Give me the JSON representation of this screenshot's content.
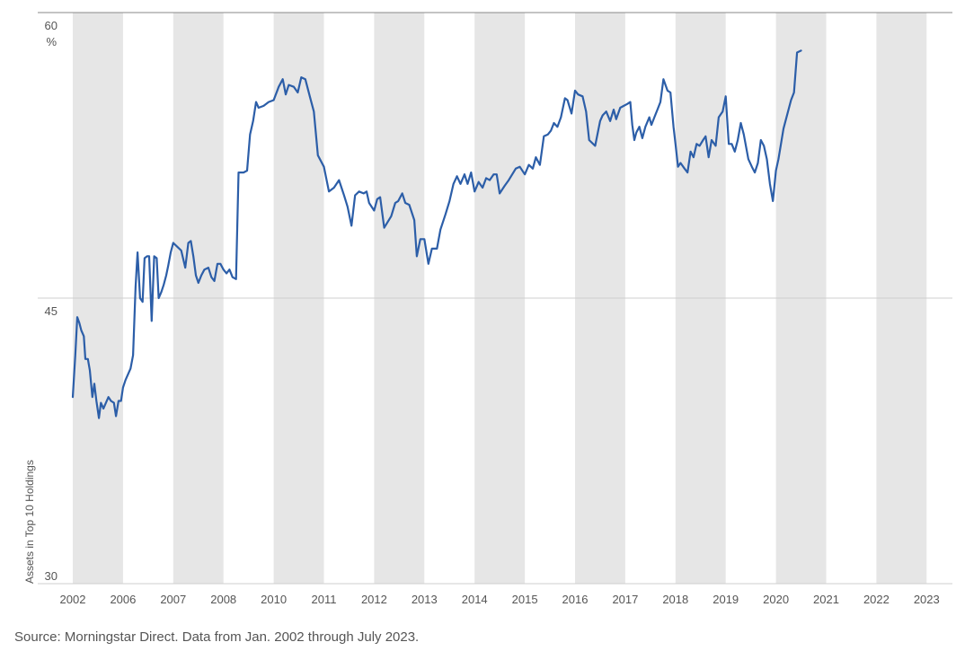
{
  "chart_data": {
    "type": "line",
    "title": "",
    "xlabel": "",
    "ylabel": "Assets in Top 10 Holdings",
    "y_unit": "%",
    "ylim": [
      30,
      60
    ],
    "yticks": [
      30,
      45,
      60
    ],
    "x_tick_labels": [
      "2002",
      "2006",
      "2007",
      "2008",
      "2010",
      "2011",
      "2012",
      "2013",
      "2014",
      "2015",
      "2016",
      "2017",
      "2018",
      "2019",
      "2020",
      "2021",
      "2022",
      "2023"
    ],
    "shaded_bands": [
      [
        0,
        1
      ],
      [
        2,
        3
      ],
      [
        4,
        5
      ],
      [
        6,
        7
      ],
      [
        8,
        9
      ],
      [
        10,
        11
      ],
      [
        12,
        13
      ],
      [
        14,
        15
      ],
      [
        16,
        17
      ]
    ],
    "grid": "horizontal",
    "series": [
      {
        "name": "Assets in Top 10 Holdings",
        "color": "#2c5ea8",
        "points": [
          [
            0.0,
            39.8
          ],
          [
            0.05,
            42.0
          ],
          [
            0.09,
            44.0
          ],
          [
            0.13,
            43.7
          ],
          [
            0.17,
            43.3
          ],
          [
            0.22,
            43.0
          ],
          [
            0.25,
            41.8
          ],
          [
            0.3,
            41.8
          ],
          [
            0.34,
            41.2
          ],
          [
            0.39,
            39.8
          ],
          [
            0.43,
            40.5
          ],
          [
            0.47,
            39.6
          ],
          [
            0.52,
            38.7
          ],
          [
            0.56,
            39.5
          ],
          [
            0.61,
            39.2
          ],
          [
            0.66,
            39.5
          ],
          [
            0.71,
            39.8
          ],
          [
            0.76,
            39.6
          ],
          [
            0.82,
            39.5
          ],
          [
            0.86,
            38.8
          ],
          [
            0.91,
            39.6
          ],
          [
            0.96,
            39.6
          ],
          [
            1.0,
            40.3
          ],
          [
            1.05,
            40.7
          ],
          [
            1.1,
            41.0
          ],
          [
            1.15,
            41.3
          ],
          [
            1.2,
            42.0
          ],
          [
            1.25,
            45.6
          ],
          [
            1.29,
            47.4
          ],
          [
            1.34,
            45.0
          ],
          [
            1.39,
            44.8
          ],
          [
            1.43,
            47.1
          ],
          [
            1.48,
            47.2
          ],
          [
            1.52,
            47.2
          ],
          [
            1.57,
            43.8
          ],
          [
            1.62,
            47.2
          ],
          [
            1.67,
            47.1
          ],
          [
            1.71,
            45.0
          ],
          [
            1.76,
            45.3
          ],
          [
            1.81,
            45.7
          ],
          [
            1.86,
            46.2
          ],
          [
            1.9,
            46.7
          ],
          [
            1.95,
            47.4
          ],
          [
            2.0,
            47.9
          ],
          [
            2.08,
            47.7
          ],
          [
            2.16,
            47.5
          ],
          [
            2.24,
            46.6
          ],
          [
            2.3,
            47.9
          ],
          [
            2.35,
            48.0
          ],
          [
            2.4,
            47.2
          ],
          [
            2.45,
            46.2
          ],
          [
            2.5,
            45.8
          ],
          [
            2.56,
            46.2
          ],
          [
            2.62,
            46.5
          ],
          [
            2.7,
            46.6
          ],
          [
            2.76,
            46.1
          ],
          [
            2.82,
            45.9
          ],
          [
            2.88,
            46.8
          ],
          [
            2.94,
            46.8
          ],
          [
            3.0,
            46.5
          ],
          [
            3.06,
            46.3
          ],
          [
            3.12,
            46.5
          ],
          [
            3.18,
            46.1
          ],
          [
            3.25,
            46.0
          ],
          [
            3.3,
            51.6
          ],
          [
            3.4,
            51.6
          ],
          [
            3.47,
            51.7
          ],
          [
            3.53,
            53.6
          ],
          [
            3.59,
            54.3
          ],
          [
            3.65,
            55.3
          ],
          [
            3.7,
            55.0
          ],
          [
            3.8,
            55.1
          ],
          [
            3.9,
            55.3
          ],
          [
            4.0,
            55.4
          ],
          [
            4.1,
            56.1
          ],
          [
            4.18,
            56.5
          ],
          [
            4.24,
            55.7
          ],
          [
            4.3,
            56.2
          ],
          [
            4.4,
            56.1
          ],
          [
            4.48,
            55.8
          ],
          [
            4.55,
            56.6
          ],
          [
            4.63,
            56.5
          ],
          [
            4.72,
            55.6
          ],
          [
            4.8,
            54.8
          ],
          [
            4.88,
            52.5
          ],
          [
            5.0,
            51.9
          ],
          [
            5.1,
            50.6
          ],
          [
            5.2,
            50.8
          ],
          [
            5.3,
            51.2
          ],
          [
            5.4,
            50.4
          ],
          [
            5.47,
            49.8
          ],
          [
            5.55,
            48.8
          ],
          [
            5.62,
            50.4
          ],
          [
            5.7,
            50.6
          ],
          [
            5.79,
            50.5
          ],
          [
            5.85,
            50.6
          ],
          [
            5.9,
            50.0
          ],
          [
            6.0,
            49.6
          ],
          [
            6.06,
            50.2
          ],
          [
            6.12,
            50.3
          ],
          [
            6.2,
            48.7
          ],
          [
            6.27,
            49.0
          ],
          [
            6.34,
            49.3
          ],
          [
            6.42,
            50.0
          ],
          [
            6.48,
            50.1
          ],
          [
            6.56,
            50.5
          ],
          [
            6.62,
            50.0
          ],
          [
            6.7,
            49.9
          ],
          [
            6.8,
            49.1
          ],
          [
            6.85,
            47.2
          ],
          [
            6.92,
            48.1
          ],
          [
            7.0,
            48.1
          ],
          [
            7.08,
            46.8
          ],
          [
            7.15,
            47.6
          ],
          [
            7.25,
            47.6
          ],
          [
            7.32,
            48.6
          ],
          [
            7.42,
            49.4
          ],
          [
            7.5,
            50.1
          ],
          [
            7.58,
            51.0
          ],
          [
            7.65,
            51.4
          ],
          [
            7.72,
            51.0
          ],
          [
            7.8,
            51.5
          ],
          [
            7.86,
            51.0
          ],
          [
            7.93,
            51.6
          ],
          [
            8.0,
            50.6
          ],
          [
            8.08,
            51.1
          ],
          [
            8.16,
            50.8
          ],
          [
            8.23,
            51.3
          ],
          [
            8.3,
            51.2
          ],
          [
            8.38,
            51.5
          ],
          [
            8.44,
            51.5
          ],
          [
            8.5,
            50.5
          ],
          [
            8.6,
            50.9
          ],
          [
            8.68,
            51.2
          ],
          [
            8.75,
            51.5
          ],
          [
            8.82,
            51.8
          ],
          [
            8.9,
            51.9
          ],
          [
            9.0,
            51.5
          ],
          [
            9.08,
            52.0
          ],
          [
            9.16,
            51.8
          ],
          [
            9.22,
            52.4
          ],
          [
            9.3,
            52.0
          ],
          [
            9.38,
            53.5
          ],
          [
            9.46,
            53.6
          ],
          [
            9.52,
            53.8
          ],
          [
            9.58,
            54.2
          ],
          [
            9.65,
            54.0
          ],
          [
            9.72,
            54.5
          ],
          [
            9.8,
            55.5
          ],
          [
            9.85,
            55.4
          ],
          [
            9.93,
            54.7
          ],
          [
            10.0,
            55.9
          ],
          [
            10.06,
            55.7
          ],
          [
            10.15,
            55.6
          ],
          [
            10.22,
            54.8
          ],
          [
            10.28,
            53.3
          ],
          [
            10.4,
            53.0
          ],
          [
            10.5,
            54.3
          ],
          [
            10.55,
            54.6
          ],
          [
            10.62,
            54.8
          ],
          [
            10.7,
            54.3
          ],
          [
            10.77,
            54.9
          ],
          [
            10.82,
            54.4
          ],
          [
            10.9,
            55.0
          ],
          [
            10.97,
            55.1
          ],
          [
            11.04,
            55.2
          ],
          [
            11.1,
            55.3
          ],
          [
            11.14,
            54.1
          ],
          [
            11.18,
            53.3
          ],
          [
            11.22,
            53.7
          ],
          [
            11.28,
            54.0
          ],
          [
            11.34,
            53.4
          ],
          [
            11.4,
            54.0
          ],
          [
            11.48,
            54.5
          ],
          [
            11.52,
            54.1
          ],
          [
            11.58,
            54.5
          ],
          [
            11.64,
            54.9
          ],
          [
            11.7,
            55.3
          ],
          [
            11.76,
            56.5
          ],
          [
            11.84,
            55.9
          ],
          [
            11.9,
            55.8
          ],
          [
            11.96,
            54.0
          ],
          [
            12.0,
            53.1
          ],
          [
            12.05,
            51.9
          ],
          [
            12.1,
            52.1
          ],
          [
            12.18,
            51.8
          ],
          [
            12.24,
            51.6
          ],
          [
            12.3,
            52.7
          ],
          [
            12.36,
            52.4
          ],
          [
            12.42,
            53.1
          ],
          [
            12.48,
            53.0
          ],
          [
            12.55,
            53.3
          ],
          [
            12.6,
            53.5
          ],
          [
            12.66,
            52.4
          ],
          [
            12.72,
            53.3
          ],
          [
            12.8,
            53.0
          ],
          [
            12.86,
            54.5
          ],
          [
            12.94,
            54.8
          ],
          [
            13.0,
            55.6
          ],
          [
            13.06,
            53.1
          ],
          [
            13.12,
            53.1
          ],
          [
            13.18,
            52.7
          ],
          [
            13.24,
            53.3
          ],
          [
            13.3,
            54.2
          ],
          [
            13.36,
            53.6
          ],
          [
            13.45,
            52.3
          ],
          [
            13.52,
            51.9
          ],
          [
            13.58,
            51.6
          ],
          [
            13.64,
            52.1
          ],
          [
            13.7,
            53.3
          ],
          [
            13.76,
            53.0
          ],
          [
            13.82,
            52.3
          ],
          [
            13.88,
            51.0
          ],
          [
            13.94,
            50.1
          ],
          [
            14.0,
            51.7
          ],
          [
            14.05,
            52.3
          ],
          [
            14.1,
            53.1
          ],
          [
            14.15,
            53.9
          ],
          [
            14.2,
            54.4
          ],
          [
            14.3,
            55.4
          ],
          [
            14.36,
            55.8
          ],
          [
            14.42,
            57.9
          ],
          [
            14.5,
            58.0
          ]
        ]
      }
    ]
  },
  "source_note": "Source: Morningstar Direct. Data from Jan. 2002 through July 2023."
}
